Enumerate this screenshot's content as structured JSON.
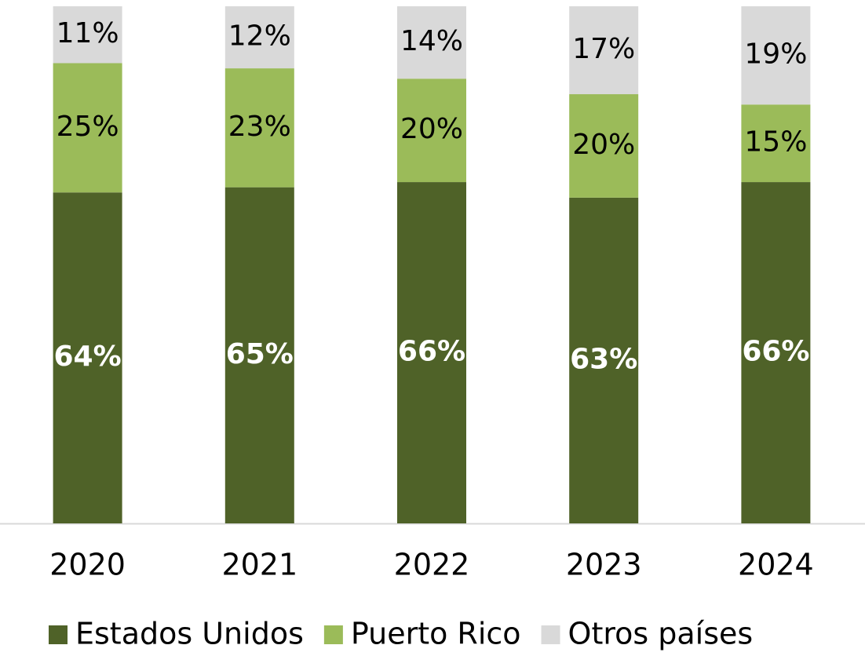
{
  "chart_data": {
    "type": "stacked_bar",
    "categories": [
      "2020",
      "2021",
      "2022",
      "2023",
      "2024"
    ],
    "series": [
      {
        "name": "Estados Unidos",
        "color": "#4f6228",
        "values": [
          64,
          65,
          66,
          63,
          66
        ],
        "value_labels": [
          "64%",
          "65%",
          "66%",
          "63%",
          "66%"
        ]
      },
      {
        "name": "Puerto Rico",
        "color": "#9bbb59",
        "values": [
          25,
          23,
          20,
          20,
          15
        ],
        "value_labels": [
          "25%",
          "23%",
          "20%",
          "20%",
          "15%"
        ]
      },
      {
        "name": "Otros países",
        "color": "#d9d9d9",
        "values": [
          11,
          12,
          14,
          17,
          19
        ],
        "value_labels": [
          "11%",
          "12%",
          "14%",
          "17%",
          "19%"
        ]
      }
    ],
    "ylim": [
      0,
      100
    ],
    "legend": "bottom"
  }
}
